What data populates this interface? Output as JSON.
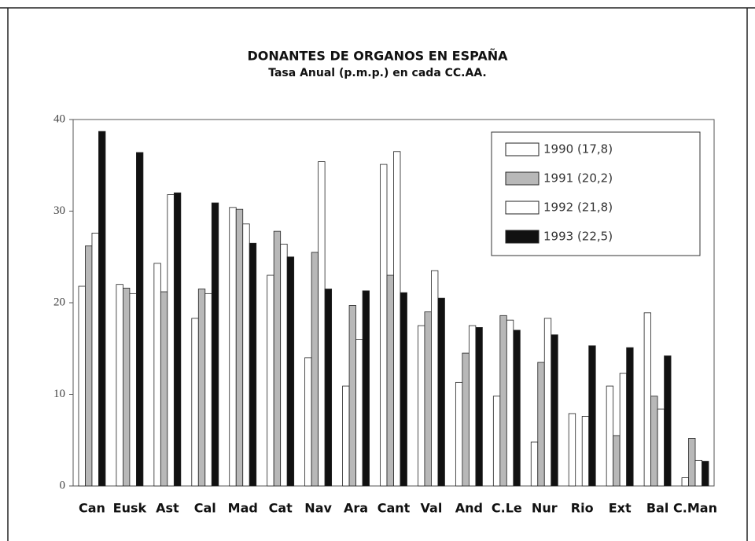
{
  "chart_data": {
    "type": "bar",
    "title": "DONANTES DE ORGANOS EN ESPAÑA",
    "subtitle": "Tasa Anual (p.m.p.) en cada CC.AA.",
    "categories": [
      "Can",
      "Eusk",
      "Ast",
      "Cal",
      "Mad",
      "Cat",
      "Nav",
      "Ara",
      "Cant",
      "Val",
      "And",
      "C.Le",
      "Nur",
      "Rio",
      "Ext",
      "Bal",
      "C.Man"
    ],
    "series": [
      {
        "name": "1990 (17,8)",
        "color": "#ffffff",
        "values": [
          21.8,
          22.0,
          24.3,
          18.3,
          30.4,
          23.0,
          14.0,
          10.9,
          35.1,
          17.5,
          11.3,
          9.8,
          4.8,
          7.9,
          10.9,
          18.9,
          0.9
        ]
      },
      {
        "name": "1991 (20,2)",
        "color": "#b8b8b8",
        "values": [
          26.2,
          21.6,
          21.2,
          21.5,
          30.2,
          27.8,
          25.5,
          19.7,
          23.0,
          19.0,
          14.5,
          18.6,
          13.5,
          null,
          5.5,
          9.8,
          5.2
        ]
      },
      {
        "name": "1992 (21,8)",
        "color": "#ffffff",
        "values": [
          27.6,
          21.0,
          31.8,
          21.0,
          28.6,
          26.4,
          35.4,
          16.0,
          36.5,
          23.5,
          17.5,
          18.1,
          18.3,
          7.6,
          12.3,
          8.4,
          2.8
        ]
      },
      {
        "name": "1993 (22,5)",
        "color": "#111111",
        "values": [
          38.7,
          36.4,
          32.0,
          30.9,
          26.5,
          25.0,
          21.5,
          21.3,
          21.1,
          20.5,
          17.3,
          17.0,
          16.5,
          15.3,
          15.1,
          14.2,
          2.7
        ]
      }
    ],
    "ylim": [
      0,
      40
    ],
    "yticks": [
      0,
      10,
      20,
      30,
      40
    ],
    "legend": "top-right"
  }
}
